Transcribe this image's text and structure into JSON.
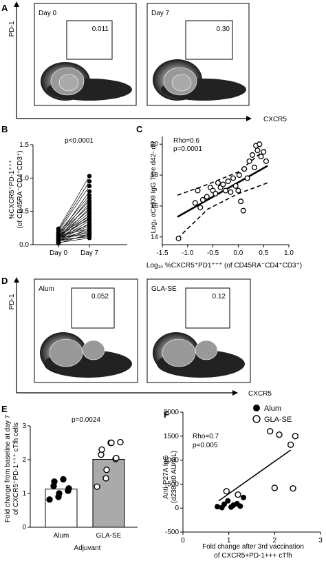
{
  "panels": {
    "A": {
      "letter": "A",
      "y_marker": "PD-1",
      "x_marker": "CXCR5",
      "plots": [
        {
          "label": "Day 0",
          "gate_value": "0.011"
        },
        {
          "label": "Day 7",
          "gate_value": "0.30"
        }
      ]
    },
    "B": {
      "letter": "B",
      "pvalue": "p<0.0001",
      "ylabel_line1": "%CXCR5⁺PD-1⁺⁺⁺",
      "ylabel_line2": "(of CD45RA⁻CD4⁺CD3⁺)",
      "categories": [
        "Day 0",
        "Day 7"
      ],
      "yticks": [
        "0.0",
        "0.5",
        "1.0",
        "1.5"
      ],
      "ylim": [
        0,
        1.5
      ],
      "pairs": [
        [
          0.02,
          0.16
        ],
        [
          0.03,
          0.1
        ],
        [
          0.04,
          0.25
        ],
        [
          0.05,
          0.14
        ],
        [
          0.05,
          0.32
        ],
        [
          0.06,
          0.2
        ],
        [
          0.06,
          0.45
        ],
        [
          0.07,
          0.12
        ],
        [
          0.07,
          0.36
        ],
        [
          0.08,
          0.22
        ],
        [
          0.08,
          0.55
        ],
        [
          0.09,
          0.18
        ],
        [
          0.09,
          0.4
        ],
        [
          0.1,
          0.28
        ],
        [
          0.1,
          0.62
        ],
        [
          0.11,
          0.15
        ],
        [
          0.11,
          0.48
        ],
        [
          0.12,
          0.3
        ],
        [
          0.12,
          0.7
        ],
        [
          0.13,
          0.24
        ],
        [
          0.13,
          0.52
        ],
        [
          0.14,
          0.38
        ],
        [
          0.14,
          0.8
        ],
        [
          0.15,
          0.42
        ],
        [
          0.16,
          0.58
        ],
        [
          0.17,
          0.66
        ],
        [
          0.18,
          0.74
        ],
        [
          0.2,
          0.88
        ],
        [
          0.22,
          0.95
        ],
        [
          0.24,
          1.03
        ]
      ]
    },
    "C": {
      "letter": "C",
      "rho": "Rho=0.6",
      "pvalue": "p=0.0001",
      "ylabel": "Log₂ αCal09 IgG Titre d42- d0",
      "xlabel": "Log₁₀ %CXCR5⁺PD1⁺⁺⁺ (of CD45RA⁻CD4⁺CD3⁺)",
      "xticks": [
        "-1.5",
        "-1.0",
        "-0.5",
        "0.0",
        "0.5",
        "1.0"
      ],
      "yticks": [
        "14",
        "16",
        "18",
        "20"
      ],
      "xlim": [
        -1.5,
        1.0
      ],
      "ylim": [
        13.5,
        20.5
      ],
      "points": [
        [
          -1.18,
          13.9
        ],
        [
          -0.85,
          16.2
        ],
        [
          -0.8,
          17.0
        ],
        [
          -0.75,
          15.9
        ],
        [
          -0.7,
          16.4
        ],
        [
          -0.62,
          16.6
        ],
        [
          -0.55,
          17.2
        ],
        [
          -0.5,
          17.0
        ],
        [
          -0.45,
          16.8
        ],
        [
          -0.4,
          17.5
        ],
        [
          -0.35,
          17.2
        ],
        [
          -0.3,
          17.4
        ],
        [
          -0.25,
          17.0
        ],
        [
          -0.2,
          17.6
        ],
        [
          -0.15,
          16.9
        ],
        [
          -0.1,
          17.8
        ],
        [
          -0.05,
          17.3
        ],
        [
          0.0,
          17.0
        ],
        [
          0.02,
          18.0
        ],
        [
          0.05,
          16.3
        ],
        [
          0.1,
          15.7
        ],
        [
          0.12,
          18.4
        ],
        [
          0.18,
          17.8
        ],
        [
          0.22,
          18.9
        ],
        [
          0.28,
          19.3
        ],
        [
          0.32,
          18.5
        ],
        [
          0.35,
          19.9
        ],
        [
          0.38,
          19.6
        ],
        [
          0.42,
          20.0
        ],
        [
          0.45,
          19.2
        ],
        [
          0.5,
          19.5
        ],
        [
          0.55,
          18.9
        ]
      ],
      "fit": {
        "x": [
          -1.2,
          0.58
        ],
        "y": [
          15.3,
          18.6
        ]
      },
      "ci_upper": {
        "x": [
          -1.2,
          -0.6,
          0.0,
          0.58
        ],
        "y": [
          16.7,
          17.4,
          18.2,
          19.8
        ]
      },
      "ci_lower": {
        "x": [
          -1.2,
          -0.6,
          0.0,
          0.58
        ],
        "y": [
          13.9,
          15.8,
          16.8,
          17.5
        ]
      }
    },
    "D": {
      "letter": "D",
      "y_marker": "PD-1",
      "x_marker": "CXCR5",
      "plots": [
        {
          "label": "Alum",
          "gate_value": "0.052"
        },
        {
          "label": "GLA-SE",
          "gate_value": "0.12"
        }
      ]
    },
    "E": {
      "letter": "E",
      "pvalue": "p=0.0024",
      "ylabel_line1": "Fold change from baseline at day 7",
      "ylabel_line2": "of CXCR5⁺PD-1⁺⁺⁺ cTfh cells",
      "xlabel": "Adjuvant",
      "categories": [
        "Alum",
        "GLA-SE"
      ],
      "yticks": [
        "0",
        "1",
        "2",
        "3"
      ],
      "ylim": [
        0,
        3
      ],
      "means": [
        1.13,
        2.01
      ],
      "alum_points": [
        0.82,
        0.9,
        1.0,
        1.08,
        1.15,
        1.22,
        1.35,
        1.42
      ],
      "glase_points": [
        1.2,
        1.45,
        1.7,
        2.02,
        2.05,
        2.15,
        2.3,
        2.5,
        2.5,
        2.52
      ]
    },
    "F": {
      "letter": "F",
      "legend": [
        "Alum",
        "GLA-SE"
      ],
      "rho": "Rho=0.7",
      "pvalue": "p=0.005",
      "ylabel_line1": "Anti-P27A IgG",
      "ylabel_line2": "(d238-d0 AU/mL)",
      "xlabel_line1": "Fold change after 3rd vaccination",
      "xlabel_line2": "of CXCR5+PD-1+++ cTfh",
      "xticks": [
        "0",
        "1",
        "2",
        "3"
      ],
      "yticks": [
        "-500",
        "0",
        "500",
        "1000",
        "1500",
        "2000"
      ],
      "xlim": [
        0,
        3
      ],
      "ylim": [
        -500,
        2000
      ],
      "alum_points": [
        [
          0.75,
          30
        ],
        [
          0.85,
          10
        ],
        [
          0.9,
          80
        ],
        [
          0.98,
          150
        ],
        [
          1.05,
          20
        ],
        [
          1.1,
          60
        ],
        [
          1.18,
          90
        ],
        [
          1.25,
          40
        ],
        [
          1.32,
          220
        ]
      ],
      "glase_points": [
        [
          0.95,
          350
        ],
        [
          1.2,
          280
        ],
        [
          1.9,
          1600
        ],
        [
          2.0,
          420
        ],
        [
          2.1,
          1530
        ],
        [
          2.35,
          1320
        ],
        [
          2.4,
          410
        ],
        [
          2.45,
          1500
        ]
      ],
      "fit": {
        "x": [
          0.78,
          2.35
        ],
        "y": [
          150,
          1210
        ]
      }
    }
  }
}
